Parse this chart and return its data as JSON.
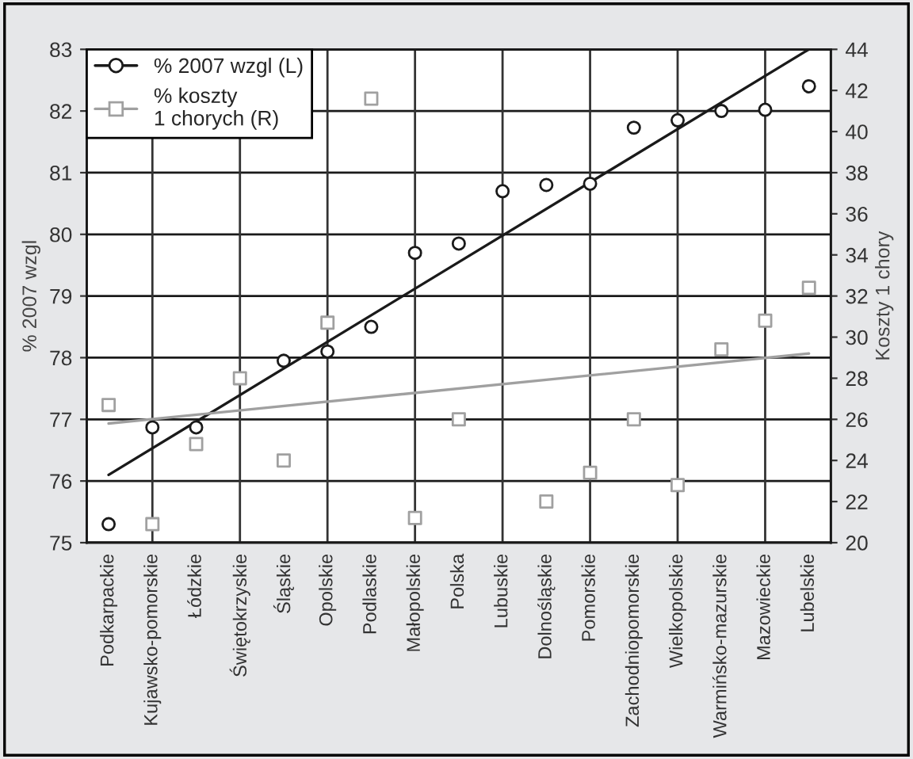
{
  "chart_data": {
    "type": "scatter",
    "categories": [
      "Podkarpackie",
      "Kujawsko-pomorskie",
      "Łódzkie",
      "Świętokrzyskie",
      "Śląskie",
      "Opolskie",
      "Podlaskie",
      "Małopolskie",
      "Polska",
      "Lubuskie",
      "Dolnośląskie",
      "Pomorskie",
      "Zachodniopomorskie",
      "Wielkopolskie",
      "Warmińsko-mazurskie",
      "Mazowieckie",
      "Lubelskie"
    ],
    "ylabel": "% 2007 wzgl",
    "y2label": "Koszty 1 chory",
    "ylim": [
      75,
      83
    ],
    "yticks": [
      75,
      76,
      77,
      78,
      79,
      80,
      81,
      82,
      83
    ],
    "y2lim": [
      20,
      44
    ],
    "y2ticks": [
      20,
      22,
      24,
      26,
      28,
      30,
      32,
      34,
      36,
      38,
      40,
      42,
      44
    ],
    "grid": true,
    "legend": "top left",
    "series": [
      {
        "name": "% 2007 wzgl (L)",
        "marker": "circle",
        "color": "#1a1a1a",
        "values": [
          75.3,
          76.87,
          76.87,
          null,
          77.95,
          78.1,
          78.5,
          79.7,
          79.85,
          80.7,
          80.8,
          80.82,
          81.73,
          81.85,
          82.0,
          82.02,
          82.4
        ]
      },
      {
        "type": "line",
        "marker": "none",
        "color": "#1a1a1a",
        "x": [
          "Podkarpackie",
          "Lubelskie"
        ],
        "values": [
          76.1,
          83.0
        ]
      },
      {
        "name": "% koszty\n1 chorych (R)",
        "marker": "square",
        "axis": "y2",
        "color": "#a0a0a0",
        "values": [
          26.7,
          20.9,
          24.8,
          28.0,
          24.0,
          30.7,
          41.6,
          21.2,
          26.0,
          null,
          22.0,
          23.4,
          26.0,
          22.8,
          29.4,
          30.8,
          32.4
        ]
      },
      {
        "type": "line",
        "marker": "none",
        "axis": "y2",
        "color": "#a0a0a0",
        "x": [
          "Podkarpackie",
          "Lubelskie"
        ],
        "values": [
          25.8,
          29.2
        ]
      }
    ]
  }
}
